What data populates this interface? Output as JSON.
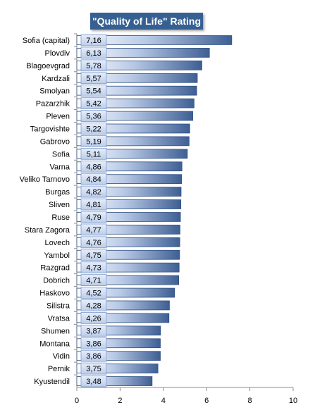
{
  "chart_data": {
    "type": "bar",
    "orientation": "horizontal",
    "title": "\"Quality of Life\" Rating",
    "xlabel": "",
    "ylabel": "",
    "xlim": [
      0,
      10
    ],
    "x_ticks": [
      0,
      2,
      4,
      6,
      8,
      10
    ],
    "grid": false,
    "legend": "none",
    "bar_color": "#4f6fa5",
    "label_box_color": "#c6d6ef",
    "title_bg_color": "#376092",
    "categories": [
      "Sofia (capital)",
      "Plovdiv",
      "Blagoevgrad",
      "Kardzali",
      "Smolyan",
      "Pazarzhik",
      "Pleven",
      "Targovishte",
      "Gabrovo",
      "Sofia",
      "Varna",
      "Veliko Tarnovo",
      "Burgas",
      "Sliven",
      "Ruse",
      "Stara Zagora",
      "Lovech",
      "Yambol",
      "Razgrad",
      "Dobrich",
      "Haskovo",
      "Silistra",
      "Vratsa",
      "Shumen",
      "Montana",
      "Vidin",
      "Pernik",
      "Kyustendil"
    ],
    "values": [
      7.16,
      6.13,
      5.78,
      5.57,
      5.54,
      5.42,
      5.36,
      5.22,
      5.19,
      5.11,
      4.86,
      4.84,
      4.82,
      4.81,
      4.79,
      4.77,
      4.76,
      4.75,
      4.73,
      4.71,
      4.52,
      4.28,
      4.26,
      3.87,
      3.86,
      3.86,
      3.75,
      3.48
    ],
    "value_labels": [
      "7,16",
      "6,13",
      "5,78",
      "5,57",
      "5,54",
      "5,42",
      "5,36",
      "5,22",
      "5,19",
      "5,11",
      "4,86",
      "4,84",
      "4,82",
      "4,81",
      "4,79",
      "4,77",
      "4,76",
      "4,75",
      "4,73",
      "4,71",
      "4,52",
      "4,28",
      "4,26",
      "3,87",
      "3,86",
      "3,86",
      "3,75",
      "3,48"
    ]
  }
}
